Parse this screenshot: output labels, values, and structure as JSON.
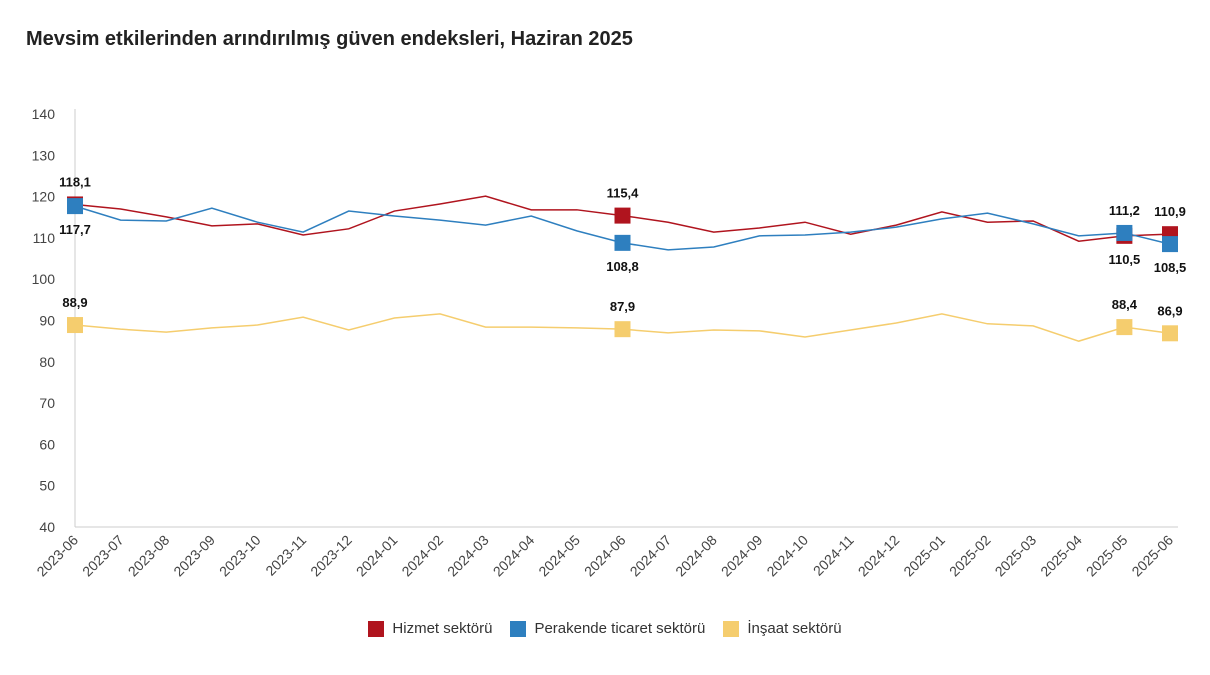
{
  "chart_data": {
    "type": "line",
    "title": "Mevsim etkilerinden arındırılmış güven endeksleri, Haziran 2025",
    "xlabel": "",
    "ylabel": "",
    "ylim": [
      40,
      140
    ],
    "yticks": [
      40,
      50,
      60,
      70,
      80,
      90,
      100,
      110,
      120,
      130,
      140
    ],
    "grid": false,
    "legend": "bottom",
    "x": [
      "2023-06",
      "2023-07",
      "2023-08",
      "2023-09",
      "2023-10",
      "2023-11",
      "2023-12",
      "2024-01",
      "2024-02",
      "2024-03",
      "2024-04",
      "2024-05",
      "2024-06",
      "2024-07",
      "2024-08",
      "2024-09",
      "2024-10",
      "2024-11",
      "2024-12",
      "2025-01",
      "2025-02",
      "2025-03",
      "2025-04",
      "2025-05",
      "2025-06"
    ],
    "labeled_indices": [
      0,
      12,
      23,
      24
    ],
    "series": [
      {
        "name": "Hizmet sektörü",
        "color": "#b0141e",
        "values": [
          118.1,
          117.0,
          115.1,
          112.9,
          113.4,
          110.7,
          112.2,
          116.5,
          118.2,
          120.1,
          116.8,
          116.8,
          115.4,
          113.8,
          111.4,
          112.4,
          113.8,
          110.9,
          113.1,
          116.3,
          113.8,
          114.1,
          109.2,
          110.5,
          110.9
        ],
        "labels": [
          "118,1",
          "115,4",
          "110,5",
          "110,9"
        ]
      },
      {
        "name": "Perakende ticaret sektörü",
        "color": "#2e7fbf",
        "values": [
          117.7,
          114.3,
          114.1,
          117.2,
          113.8,
          111.4,
          116.5,
          115.3,
          114.3,
          113.1,
          115.3,
          111.7,
          108.8,
          107.1,
          107.8,
          110.5,
          110.7,
          111.4,
          112.6,
          114.6,
          116.0,
          113.4,
          110.5,
          111.2,
          108.5
        ],
        "labels": [
          "117,7",
          "108,8",
          "111,2",
          "108,5"
        ]
      },
      {
        "name": "İnşaat sektörü",
        "color": "#f5cd6e",
        "values": [
          88.9,
          87.9,
          87.2,
          88.2,
          88.9,
          90.8,
          87.7,
          90.6,
          91.6,
          88.4,
          88.4,
          88.2,
          87.9,
          87.0,
          87.7,
          87.5,
          86.0,
          87.7,
          89.4,
          91.6,
          89.2,
          88.7,
          85.0,
          88.4,
          86.9
        ],
        "labels": [
          "88,9",
          "87,9",
          "88,4",
          "86,9"
        ]
      }
    ]
  }
}
